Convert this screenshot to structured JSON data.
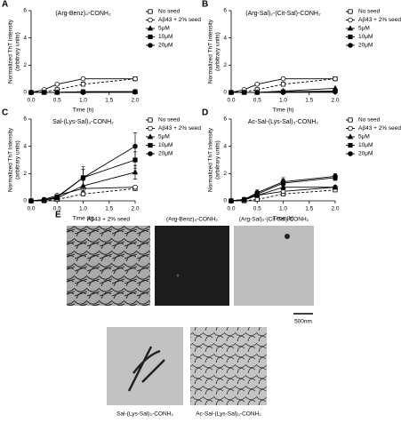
{
  "chart_data": [
    {
      "type": "line",
      "panel": "A",
      "title": "(Arg-Benz)₄-CONH₂",
      "x_label": "Time (h)",
      "y_label": [
        "Normalized ThT Intensity",
        "(arbitrary units)"
      ],
      "x": [
        0,
        0.25,
        0.5,
        1,
        2
      ],
      "xlim": [
        0,
        2
      ],
      "xticks": [
        {
          "value": 0,
          "label": "0.0"
        },
        {
          "value": 0.5,
          "label": "0.5"
        },
        {
          "value": 1,
          "label": "1.0"
        },
        {
          "value": 1.5,
          "label": "1.5"
        },
        {
          "value": 2,
          "label": "2.0"
        }
      ],
      "ylim": [
        0,
        6
      ],
      "yticks": [
        0,
        2,
        4,
        6
      ],
      "legend": "right",
      "series": [
        {
          "name": "No seed",
          "marker": "square-open",
          "dash": true,
          "color": "#000",
          "values": [
            0,
            0.05,
            0.2,
            0.6,
            1.0
          ]
        },
        {
          "name": "Aβ43 + 2% seed",
          "marker": "circle-open",
          "dash": false,
          "color": "#000",
          "values": [
            0,
            0.2,
            0.6,
            1.0,
            1.0
          ]
        },
        {
          "name": "5μM",
          "marker": "triangle",
          "dash": false,
          "color": "#000",
          "values": [
            0,
            0,
            0,
            0.05,
            0.05
          ]
        },
        {
          "name": "10μM",
          "marker": "square",
          "dash": false,
          "color": "#000",
          "values": [
            0,
            0,
            0,
            0.05,
            0.05
          ]
        },
        {
          "name": "20μM",
          "marker": "circle",
          "dash": false,
          "color": "#000",
          "values": [
            0,
            0,
            0,
            0,
            0.05
          ]
        }
      ]
    },
    {
      "type": "line",
      "panel": "B",
      "title": "(Arg-Sal)₂-(Cit-Sal)-CONH₂",
      "x_label": "Time (h)",
      "y_label": [
        "Normalized ThT Intensity",
        "(arbitrary units)"
      ],
      "x": [
        0,
        0.25,
        0.5,
        1,
        2
      ],
      "xlim": [
        0,
        2
      ],
      "xticks": [
        {
          "value": 0,
          "label": "0.0"
        },
        {
          "value": 0.5,
          "label": "0.5"
        },
        {
          "value": 1,
          "label": "1.0"
        },
        {
          "value": 1.5,
          "label": "1.5"
        },
        {
          "value": 2,
          "label": "2.0"
        }
      ],
      "ylim": [
        0,
        6
      ],
      "yticks": [
        0,
        2,
        4,
        6
      ],
      "legend": "right",
      "series": [
        {
          "name": "No seed",
          "marker": "square-open",
          "dash": true,
          "color": "#000",
          "values": [
            0,
            0.05,
            0.2,
            0.6,
            1.0
          ]
        },
        {
          "name": "Aβ43 + 2% seed",
          "marker": "circle-open",
          "dash": false,
          "color": "#000",
          "values": [
            0,
            0.2,
            0.6,
            1.0,
            1.0
          ]
        },
        {
          "name": "5μM",
          "marker": "triangle",
          "dash": false,
          "color": "#000",
          "values": [
            0,
            0,
            0,
            0.1,
            0.3
          ]
        },
        {
          "name": "10μM",
          "marker": "square",
          "dash": false,
          "color": "#000",
          "values": [
            0,
            0,
            0,
            0.05,
            0.1
          ]
        },
        {
          "name": "20μM",
          "marker": "circle",
          "dash": false,
          "color": "#000",
          "values": [
            0,
            0,
            0,
            0,
            0.05
          ]
        }
      ]
    },
    {
      "type": "line",
      "panel": "C",
      "title": "Sal-(Lys-Sal)₃-CONH₂",
      "x_label": "Time (h)",
      "y_label": [
        "Normalized ThT Intensity",
        "(arbitrary units)"
      ],
      "x": [
        0,
        0.25,
        0.5,
        1,
        2
      ],
      "xlim": [
        0,
        2
      ],
      "xticks": [
        {
          "value": 0,
          "label": "0.0"
        },
        {
          "value": 0.5,
          "label": "0.5"
        },
        {
          "value": 1,
          "label": "1.0"
        },
        {
          "value": 1.5,
          "label": "1.5"
        },
        {
          "value": 2,
          "label": "2.0"
        }
      ],
      "ylim": [
        0,
        6
      ],
      "yticks": [
        0,
        2,
        4,
        6
      ],
      "legend": "right",
      "series": [
        {
          "name": "No seed",
          "marker": "square-open",
          "dash": true,
          "color": "#000",
          "values": [
            0,
            0,
            0.1,
            0.5,
            0.9
          ]
        },
        {
          "name": "Aβ43 + 2% seed",
          "marker": "circle-open",
          "dash": false,
          "color": "#000",
          "values": [
            0,
            0.1,
            0.4,
            0.9,
            1.0
          ]
        },
        {
          "name": "5μM",
          "marker": "triangle",
          "dash": false,
          "color": "#000",
          "values": [
            0,
            0.05,
            0.2,
            1.1,
            2.1
          ],
          "errors": [
            0,
            0,
            0.1,
            0.4,
            0.5
          ]
        },
        {
          "name": "10μM",
          "marker": "square",
          "dash": false,
          "color": "#000",
          "values": [
            0,
            0.05,
            0.25,
            1.7,
            3.0
          ],
          "errors": [
            0,
            0,
            0.1,
            0.6,
            0.6
          ]
        },
        {
          "name": "20μM",
          "marker": "circle",
          "dash": false,
          "color": "#000",
          "values": [
            0,
            0.05,
            0.3,
            1.7,
            4.0
          ],
          "errors": [
            0,
            0,
            0.1,
            0.8,
            1.0
          ]
        }
      ]
    },
    {
      "type": "line",
      "panel": "D",
      "title": "Ac-Sal-(Lys-Sal)₃-CONH₂",
      "x_label": "Time (h)",
      "y_label": [
        "Normalized ThT Intensity",
        "(arbitrary units)"
      ],
      "x": [
        0,
        0.25,
        0.5,
        1,
        2
      ],
      "xlim": [
        0,
        2
      ],
      "xticks": [
        {
          "value": 0,
          "label": "0.0"
        },
        {
          "value": 0.5,
          "label": "0.5"
        },
        {
          "value": 1,
          "label": "1.0"
        },
        {
          "value": 1.5,
          "label": "1.5"
        },
        {
          "value": 2,
          "label": "2.0"
        }
      ],
      "ylim": [
        0,
        6
      ],
      "yticks": [
        0,
        2,
        4,
        6
      ],
      "legend": "right",
      "series": [
        {
          "name": "No seed",
          "marker": "square-open",
          "dash": true,
          "color": "#000",
          "values": [
            0,
            0,
            0.1,
            0.5,
            0.8
          ]
        },
        {
          "name": "Aβ43 + 2% seed",
          "marker": "circle-open",
          "dash": false,
          "color": "#000",
          "values": [
            0,
            0.1,
            0.4,
            0.7,
            1.0
          ]
        },
        {
          "name": "5μM",
          "marker": "triangle",
          "dash": false,
          "color": "#000",
          "values": [
            0,
            0.05,
            0.4,
            1.0,
            1.0
          ],
          "errors": [
            0,
            0,
            0.1,
            0.2,
            0.1
          ]
        },
        {
          "name": "10μM",
          "marker": "square",
          "dash": false,
          "color": "#000",
          "values": [
            0,
            0.1,
            0.5,
            1.3,
            1.7
          ],
          "errors": [
            0,
            0,
            0.2,
            0.3,
            0.2
          ]
        },
        {
          "name": "20μM",
          "marker": "circle",
          "dash": false,
          "color": "#000",
          "values": [
            0,
            0.1,
            0.6,
            1.4,
            1.8
          ],
          "errors": [
            0,
            0,
            0.2,
            0.3,
            0.2
          ]
        }
      ]
    }
  ],
  "micrographs": {
    "panel": "E",
    "scale_bar": "500nm",
    "labels": [
      "Aβ43 + 2% seed",
      "(Arg-Benz)₄-CONH₂",
      "(Arg-Sal)₂-(Cit-Sal)-CONH₂",
      "Sal-(Lys-Sal)₃-CONH₂",
      "Ac-Sal-(Lys-Sal)₃-CONH₂"
    ]
  }
}
